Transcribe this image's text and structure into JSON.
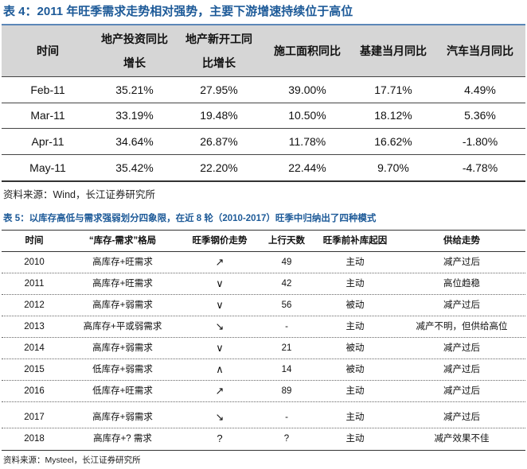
{
  "table4": {
    "title": "表 4：2011 年旺季需求走势相对强势，主要下游增速持续位于高位",
    "headers": [
      [
        "时间"
      ],
      [
        "地产投资同比",
        "增长"
      ],
      [
        "地产新开工同",
        "比增长"
      ],
      [
        "施工面积同比"
      ],
      [
        "基建当月同比"
      ],
      [
        "汽车当月同比"
      ]
    ],
    "rows": [
      [
        "Feb-11",
        "35.21%",
        "27.95%",
        "39.00%",
        "17.71%",
        "4.49%"
      ],
      [
        "Mar-11",
        "33.19%",
        "19.48%",
        "10.50%",
        "18.12%",
        "5.36%"
      ],
      [
        "Apr-11",
        "34.64%",
        "26.87%",
        "11.78%",
        "16.62%",
        "-1.80%"
      ],
      [
        "May-11",
        "35.42%",
        "22.20%",
        "22.44%",
        "9.70%",
        "-4.78%"
      ]
    ],
    "source": "资料来源：Wind，长江证券研究所"
  },
  "table5": {
    "title": "表 5：以库存高低与需求强弱划分四象限，在近 8 轮（2010-2017）旺季中归纳出了四种模式",
    "headers": [
      "时间",
      "“库存-需求”格局",
      "旺季钢价走势",
      "上行天数",
      "旺季前补库起因",
      "供给走势"
    ],
    "rows": [
      [
        "2010",
        "高库存+旺需求",
        "↗",
        "49",
        "主动",
        "减产过后"
      ],
      [
        "2011",
        "高库存+旺需求",
        "∨",
        "42",
        "主动",
        "高位趋稳"
      ],
      [
        "2012",
        "高库存+弱需求",
        "∨",
        "56",
        "被动",
        "减产过后"
      ],
      [
        "2013",
        "高库存+平或弱需求",
        "↘",
        "-",
        "主动",
        "减产不明，但供给高位"
      ],
      [
        "2014",
        "高库存+弱需求",
        "∨",
        "21",
        "被动",
        "减产过后"
      ],
      [
        "2015",
        "低库存+弱需求",
        "∧",
        "14",
        "被动",
        "减产过后"
      ],
      [
        "2016",
        "低库存+旺需求",
        "↗",
        "89",
        "主动",
        "减产过后"
      ],
      [
        "2017",
        "高库存+弱需求",
        "↘",
        "-",
        "主动",
        "减产过后"
      ],
      [
        "2018",
        "高库存+? 需求",
        "?",
        "?",
        "主动",
        "减产效果不佳"
      ]
    ],
    "source": "资料来源：Mysteel，长江证券研究所"
  }
}
